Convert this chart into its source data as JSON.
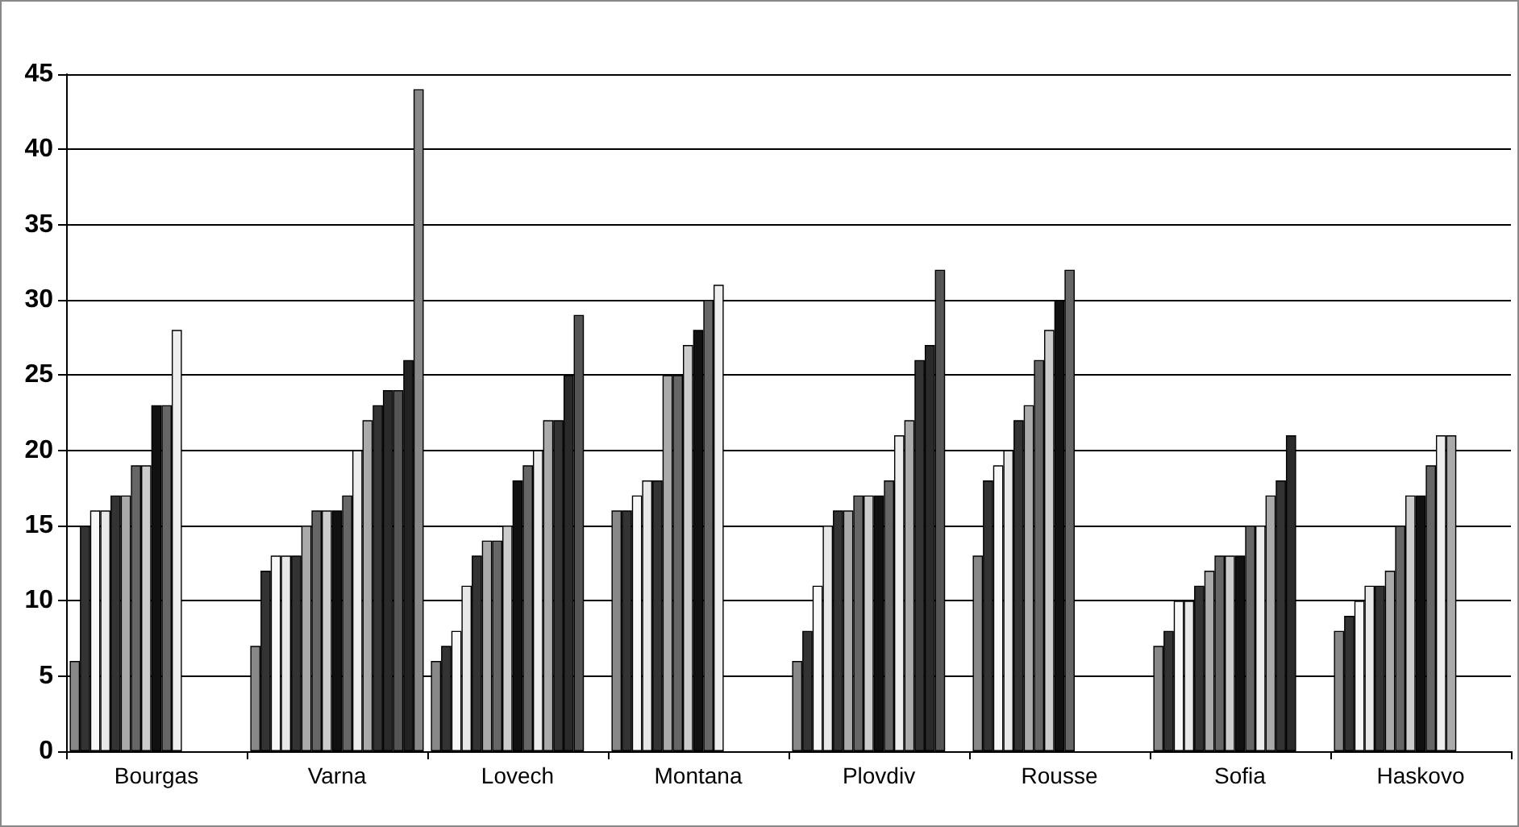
{
  "chart_data": {
    "type": "bar",
    "categories": [
      "Bourgas",
      "Varna",
      "Lovech",
      "Montana",
      "Plovdiv",
      "Rousse",
      "Sofia",
      "Haskovo"
    ],
    "series": [
      {
        "color": "#888888",
        "values": [
          6,
          7,
          6,
          16,
          6,
          13,
          7,
          8
        ]
      },
      {
        "color": "#333333",
        "values": [
          15,
          12,
          7,
          16,
          8,
          18,
          8,
          9
        ]
      },
      {
        "color": "#f8f8f8",
        "values": [
          16,
          13,
          8,
          17,
          11,
          19,
          10,
          10
        ]
      },
      {
        "color": "#e8e8e8",
        "values": [
          16,
          13,
          11,
          18,
          15,
          20,
          10,
          11
        ]
      },
      {
        "color": "#333333",
        "values": [
          17,
          13,
          13,
          18,
          16,
          22,
          11,
          11
        ]
      },
      {
        "color": "#aaaaaa",
        "values": [
          17,
          15,
          14,
          25,
          16,
          23,
          12,
          12
        ]
      },
      {
        "color": "#666666",
        "values": [
          19,
          16,
          14,
          25,
          17,
          26,
          13,
          15
        ]
      },
      {
        "color": "#cccccc",
        "values": [
          19,
          16,
          15,
          27,
          17,
          28,
          13,
          17
        ]
      },
      {
        "color": "#111111",
        "values": [
          23,
          16,
          18,
          28,
          17,
          30,
          13,
          17
        ]
      },
      {
        "color": "#666666",
        "values": [
          23,
          17,
          19,
          30,
          18,
          32,
          15,
          19
        ]
      },
      {
        "color": "#eeeeee",
        "values": [
          28,
          20,
          20,
          31,
          21,
          null,
          15,
          21
        ]
      },
      {
        "color": "#aaaaaa",
        "values": [
          null,
          22,
          22,
          null,
          22,
          null,
          17,
          21
        ]
      },
      {
        "color": "#333333",
        "values": [
          null,
          23,
          22,
          null,
          26,
          null,
          18,
          null
        ]
      },
      {
        "color": "#2a2a2a",
        "values": [
          null,
          24,
          25,
          null,
          27,
          null,
          21,
          null
        ]
      },
      {
        "color": "#555555",
        "values": [
          null,
          24,
          29,
          null,
          32,
          null,
          null,
          null
        ]
      },
      {
        "color": "#222222",
        "values": [
          null,
          26,
          null,
          null,
          null,
          null,
          null,
          null
        ]
      },
      {
        "color": "#888888",
        "values": [
          null,
          44,
          null,
          null,
          null,
          null,
          null,
          null
        ]
      }
    ],
    "ylim": [
      0,
      45
    ],
    "yticks": [
      0,
      5,
      10,
      15,
      20,
      25,
      30,
      35,
      40,
      45
    ],
    "grid": "y"
  }
}
